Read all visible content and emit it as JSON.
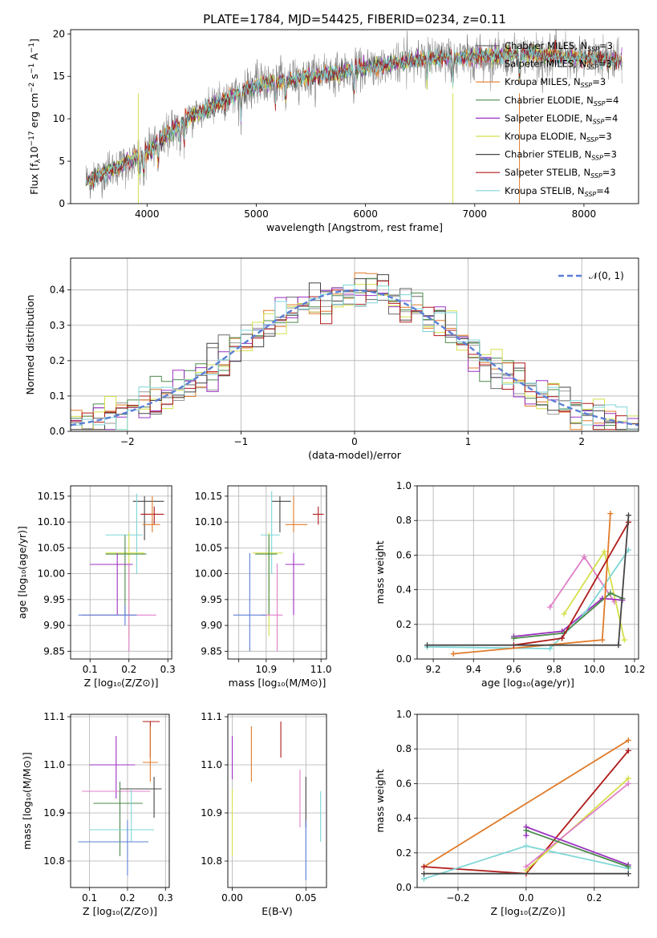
{
  "figure": {
    "title": "PLATE=1784, MJD=54425, FIBERID=0234, z=0.11"
  },
  "models": [
    {
      "name": "Chabrier MILES, N_SSP=3",
      "base": "Chabrier MILES, N",
      "sub": "SSP",
      "tail": "=3",
      "color": "#6a6a6a"
    },
    {
      "name": "Salpeter MILES, N_SSP=3",
      "base": "Salpeter MILES, N",
      "sub": "SSP",
      "tail": "=3",
      "color": "#999999"
    },
    {
      "name": "Kroupa MILES, N_SSP=3",
      "base": "Kroupa MILES, N",
      "sub": "SSP",
      "tail": "=3",
      "color": "#e07b2a"
    },
    {
      "name": "Chabrier ELODIE, N_SSP=4",
      "base": "Chabrier ELODIE, N",
      "sub": "SSP",
      "tail": "=4",
      "color": "#4c8a4c"
    },
    {
      "name": "Salpeter ELODIE, N_SSP=4",
      "base": "Salpeter ELODIE, N",
      "sub": "SSP",
      "tail": "=4",
      "color": "#9b30c0"
    },
    {
      "name": "Kroupa ELODIE, N_SSP=3",
      "base": "Kroupa ELODIE, N",
      "sub": "SSP",
      "tail": "=3",
      "color": "#d4e04a"
    },
    {
      "name": "Chabrier STELIB, N_SSP=3",
      "base": "Chabrier STELIB, N",
      "sub": "SSP",
      "tail": "=3",
      "color": "#444444"
    },
    {
      "name": "Salpeter STELIB, N_SSP=3",
      "base": "Salpeter STELIB, N",
      "sub": "SSP",
      "tail": "=3",
      "color": "#b01a1a"
    },
    {
      "name": "Kroupa STELIB, N_SSP=4",
      "base": "Kroupa STELIB, N",
      "sub": "SSP",
      "tail": "=4",
      "color": "#7fd6d6"
    }
  ],
  "extra_colors": {
    "blue": "#5b7fd6",
    "pink": "#e07fc8"
  },
  "chart_data": [
    {
      "id": "spectrum",
      "type": "line",
      "title": "PLATE=1784, MJD=54425, FIBERID=0234, z=0.11",
      "xlabel": "wavelength [Angstrom, rest frame]",
      "ylabel_main": "Flux [f",
      "ylabel_sub": "λ",
      "ylabel_rest": "10",
      "ylabel_exp1": "−17",
      "ylabel_unit": " erg cm",
      "ylabel_exp2": "−2",
      "ylabel_s": " s",
      "ylabel_exp3": "−1",
      "ylabel_A": " A",
      "ylabel_exp4": "−1",
      "ylabel_end": "]",
      "xlim": [
        3300,
        8500
      ],
      "ylim": [
        0,
        20.5
      ],
      "xticks": [
        4000,
        5000,
        6000,
        7000,
        8000
      ],
      "yticks": [
        0,
        5,
        10,
        15,
        20
      ],
      "xrange_data": [
        3440,
        8350
      ],
      "legend": "top-right"
    },
    {
      "id": "residuals",
      "type": "line",
      "xlabel": "(data-model)/error",
      "ylabel": "Normed distribution",
      "xlim": [
        -2.5,
        2.5
      ],
      "ylim": [
        0,
        0.49
      ],
      "xticks": [
        -2,
        -1,
        0,
        1,
        2
      ],
      "yticks": [
        0.0,
        0.1,
        0.2,
        0.3,
        0.4
      ],
      "legend_label": "𝒩(0, 1)",
      "legend": "top-right",
      "grid": true
    },
    {
      "id": "age-vs-z",
      "type": "scatter",
      "xlabel": "Z [log₁₀(Z/Z⊙)]",
      "ylabel": "age  [log₁₀(age/yr)]",
      "xlim": [
        0.05,
        0.31
      ],
      "ylim": [
        9.835,
        10.17
      ],
      "xticks": [
        0.1,
        0.2,
        0.3
      ],
      "yticks": [
        9.85,
        9.9,
        9.95,
        10.0,
        10.05,
        10.1,
        10.15
      ],
      "grid": true,
      "points": [
        {
          "c": "#444444",
          "x": 0.24,
          "xe": [
            0.21,
            0.29
          ],
          "y": 10.14,
          "ye": [
            10.065,
            10.15
          ]
        },
        {
          "c": "#b01a1a",
          "x": 0.265,
          "xe": [
            0.23,
            0.29
          ],
          "y": 10.115,
          "ye": [
            10.095,
            10.13
          ]
        },
        {
          "c": "#e07b2a",
          "x": 0.26,
          "xe": [
            0.235,
            0.28
          ],
          "y": 10.095,
          "ye": [
            10.08,
            10.15
          ]
        },
        {
          "c": "#7fd6d6",
          "x": 0.22,
          "xe": [
            0.14,
            0.235
          ],
          "y": 10.075,
          "ye": [
            10.0,
            10.155
          ]
        },
        {
          "c": "#d4e04a",
          "x": 0.2,
          "xe": [
            0.14,
            0.24
          ],
          "y": 10.04,
          "ye": [
            9.88,
            10.08
          ]
        },
        {
          "c": "#4c8a4c",
          "x": 0.19,
          "xe": [
            0.14,
            0.245
          ],
          "y": 10.038,
          "ye": [
            9.92,
            10.075
          ]
        },
        {
          "c": "#9b30c0",
          "x": 0.17,
          "xe": [
            0.1,
            0.21
          ],
          "y": 10.018,
          "ye": [
            9.92,
            10.04
          ]
        },
        {
          "c": "#e07fc8",
          "x": 0.2,
          "xe": [
            0.08,
            0.27
          ],
          "y": 9.92,
          "ye": [
            9.85,
            10.02
          ]
        },
        {
          "c": "#5b7fd6",
          "x": 0.19,
          "xe": [
            0.07,
            0.22
          ],
          "y": 9.92,
          "ye": [
            9.9,
            9.94
          ]
        }
      ]
    },
    {
      "id": "age-vs-mass",
      "type": "scatter",
      "xlabel": "mass [log₁₀(M/M⊙)]",
      "ylabel": "",
      "xlim": [
        10.76,
        11.12
      ],
      "ylim": [
        9.835,
        10.17
      ],
      "xticks": [
        10.8,
        10.9,
        11.0,
        11.1
      ],
      "xticklabels": [
        "",
        "10.9",
        "",
        "11.0",
        ""
      ],
      "yticks": [
        9.85,
        9.9,
        9.95,
        10.0,
        10.05,
        10.1,
        10.15
      ],
      "grid": true,
      "points": [
        {
          "c": "#444444",
          "x": 10.95,
          "xe": [
            10.92,
            10.99
          ],
          "y": 10.14,
          "ye": [
            10.08,
            10.15
          ]
        },
        {
          "c": "#b01a1a",
          "x": 11.09,
          "xe": [
            11.07,
            11.11
          ],
          "y": 10.115,
          "ye": [
            10.095,
            10.13
          ]
        },
        {
          "c": "#e07b2a",
          "x": 11.0,
          "xe": [
            10.97,
            11.05
          ],
          "y": 10.095,
          "ye": [
            10.08,
            10.15
          ]
        },
        {
          "c": "#7fd6d6",
          "x": 10.92,
          "xe": [
            10.88,
            10.95
          ],
          "y": 10.075,
          "ye": [
            10.0,
            10.16
          ]
        },
        {
          "c": "#d4e04a",
          "x": 10.91,
          "xe": [
            10.85,
            10.96
          ],
          "y": 10.04,
          "ye": [
            9.88,
            10.08
          ]
        },
        {
          "c": "#4c8a4c",
          "x": 10.91,
          "xe": [
            10.86,
            10.94
          ],
          "y": 10.038,
          "ye": [
            9.92,
            10.075
          ]
        },
        {
          "c": "#9b30c0",
          "x": 11.0,
          "xe": [
            10.97,
            11.04
          ],
          "y": 10.018,
          "ye": [
            9.92,
            10.04
          ]
        },
        {
          "c": "#e07fc8",
          "x": 10.94,
          "xe": [
            10.88,
            10.96
          ],
          "y": 9.92,
          "ye": [
            9.85,
            10.02
          ]
        },
        {
          "c": "#5b7fd6",
          "x": 10.84,
          "xe": [
            10.78,
            10.9
          ],
          "y": 9.92,
          "ye": [
            9.85,
            10.04
          ]
        }
      ]
    },
    {
      "id": "weight-vs-age",
      "type": "line",
      "xlabel": "age  [log₁₀(age/yr)]",
      "ylabel": "mass weight",
      "xlim": [
        9.12,
        10.22
      ],
      "ylim": [
        0,
        1.0
      ],
      "xticks": [
        9.2,
        9.4,
        9.6,
        9.8,
        10.0,
        10.2
      ],
      "yticks": [
        0.0,
        0.2,
        0.4,
        0.6,
        0.8,
        1.0
      ],
      "grid": true,
      "series": [
        {
          "c": "#e07fc8",
          "x": [
            9.78,
            9.95,
            10.1
          ],
          "y": [
            0.3,
            0.59,
            0.33
          ]
        },
        {
          "c": "#d4e04a",
          "x": [
            9.85,
            10.05,
            10.15
          ],
          "y": [
            0.26,
            0.62,
            0.11
          ]
        },
        {
          "c": "#9b30c0",
          "x": [
            9.6,
            9.84,
            10.04,
            10.14
          ],
          "y": [
            0.13,
            0.16,
            0.35,
            0.34
          ]
        },
        {
          "c": "#7fd6d6",
          "x": [
            9.17,
            9.78,
            9.95,
            10.17
          ],
          "y": [
            0.07,
            0.06,
            0.26,
            0.63
          ]
        },
        {
          "c": "#4c8a4c",
          "x": [
            9.6,
            9.85,
            10.08,
            10.14
          ],
          "y": [
            0.12,
            0.15,
            0.38,
            0.35
          ]
        },
        {
          "c": "#e07b2a",
          "x": [
            9.3,
            10.04,
            10.08
          ],
          "y": [
            0.03,
            0.11,
            0.84
          ]
        },
        {
          "c": "#b01a1a",
          "x": [
            9.6,
            9.84,
            10.17
          ],
          "y": [
            0.08,
            0.12,
            0.79
          ]
        },
        {
          "c": "#444444",
          "x": [
            9.17,
            10.12,
            10.17
          ],
          "y": [
            0.08,
            0.08,
            0.83
          ]
        }
      ]
    },
    {
      "id": "mass-vs-z",
      "type": "scatter",
      "xlabel": "Z [log₁₀(Z/Z⊙)]",
      "ylabel": "mass [log₁₀(M/M⊙)]",
      "xlim": [
        0.05,
        0.31
      ],
      "ylim": [
        10.745,
        11.105
      ],
      "xticks": [
        0.1,
        0.2,
        0.3
      ],
      "yticks": [
        10.8,
        10.9,
        11.0,
        11.1
      ],
      "grid": true,
      "points": [
        {
          "c": "#b01a1a",
          "x": 0.26,
          "xe": [
            0.24,
            0.285
          ],
          "y": 11.09,
          "ye": [
            11.015,
            11.09
          ]
        },
        {
          "c": "#e07b2a",
          "x": 0.26,
          "xe": [
            0.24,
            0.28
          ],
          "y": 11.005,
          "ye": [
            10.965,
            11.08
          ]
        },
        {
          "c": "#9b30c0",
          "x": 0.17,
          "xe": [
            0.1,
            0.22
          ],
          "y": 11.0,
          "ye": [
            10.93,
            11.06
          ]
        },
        {
          "c": "#444444",
          "x": 0.27,
          "xe": [
            0.18,
            0.29
          ],
          "y": 10.95,
          "ye": [
            10.89,
            10.975
          ]
        },
        {
          "c": "#e07fc8",
          "x": 0.18,
          "xe": [
            0.08,
            0.26
          ],
          "y": 10.945,
          "ye": [
            10.84,
            10.95
          ]
        },
        {
          "c": "#4c8a4c",
          "x": 0.18,
          "xe": [
            0.11,
            0.24
          ],
          "y": 10.92,
          "ye": [
            10.81,
            10.965
          ]
        },
        {
          "c": "#7fd6d6",
          "x": 0.21,
          "xe": [
            0.1,
            0.27
          ],
          "y": 10.865,
          "ye": [
            10.84,
            10.95
          ]
        },
        {
          "c": "#5b7fd6",
          "x": 0.2,
          "xe": [
            0.07,
            0.255
          ],
          "y": 10.84,
          "ye": [
            10.77,
            10.885
          ]
        }
      ]
    },
    {
      "id": "mass-vs-ebv",
      "type": "scatter",
      "xlabel": "E(B-V)",
      "ylabel": "",
      "xlim": [
        -0.003,
        0.064
      ],
      "ylim": [
        10.745,
        11.105
      ],
      "xticks": [
        0.0,
        0.05
      ],
      "yticks": [
        10.8,
        10.9,
        11.0,
        11.1
      ],
      "grid": true,
      "points": [
        {
          "c": "#b01a1a",
          "x": 0.033,
          "xe": [
            0.033,
            0.033
          ],
          "y": 11.05,
          "ye": [
            11.015,
            11.09
          ]
        },
        {
          "c": "#e07b2a",
          "x": 0.013,
          "xe": [
            0.013,
            0.013
          ],
          "y": 11.02,
          "ye": [
            10.965,
            11.08
          ]
        },
        {
          "c": "#9b30c0",
          "x": 0.0,
          "xe": [
            0.0,
            0.0
          ],
          "y": 11.0,
          "ye": [
            10.97,
            11.06
          ]
        },
        {
          "c": "#d4e04a",
          "x": 0.0,
          "xe": [
            0.0,
            0.0
          ],
          "y": 10.88,
          "ye": [
            10.81,
            10.95
          ]
        },
        {
          "c": "#e07fc8",
          "x": 0.046,
          "xe": [
            0.046,
            0.046
          ],
          "y": 10.93,
          "ye": [
            10.87,
            10.99
          ]
        },
        {
          "c": "#444444",
          "x": 0.05,
          "xe": [
            0.05,
            0.05
          ],
          "y": 10.92,
          "ye": [
            10.87,
            10.975
          ]
        },
        {
          "c": "#5b7fd6",
          "x": 0.05,
          "xe": [
            0.05,
            0.05
          ],
          "y": 10.82,
          "ye": [
            10.76,
            10.885
          ]
        },
        {
          "c": "#7fd6d6",
          "x": 0.06,
          "xe": [
            0.06,
            0.06
          ],
          "y": 10.89,
          "ye": [
            10.84,
            10.945
          ]
        }
      ]
    },
    {
      "id": "weight-vs-z",
      "type": "line",
      "xlabel": "Z [log₁₀(Z/Z⊙)]",
      "ylabel": "mass weight",
      "xlim": [
        -0.32,
        0.33
      ],
      "ylim": [
        0,
        1.0
      ],
      "xticks": [
        -0.2,
        0.0,
        0.2
      ],
      "yticks": [
        0.0,
        0.2,
        0.4,
        0.6,
        0.8,
        1.0
      ],
      "grid": true,
      "series": [
        {
          "c": "#e07b2a",
          "x": [
            -0.3,
            0.3
          ],
          "y": [
            0.12,
            0.85
          ]
        },
        {
          "c": "#b01a1a",
          "x": [
            -0.3,
            0.0,
            0.3
          ],
          "y": [
            0.12,
            0.08,
            0.79
          ]
        },
        {
          "c": "#7fd6d6",
          "x": [
            -0.3,
            0.0,
            0.3
          ],
          "y": [
            0.05,
            0.24,
            0.11
          ]
        },
        {
          "c": "#d4e04a",
          "x": [
            0.0,
            0.3
          ],
          "y": [
            0.1,
            0.63
          ]
        },
        {
          "c": "#e07fc8",
          "x": [
            0.0,
            0.3
          ],
          "y": [
            0.12,
            0.6
          ]
        },
        {
          "c": "#9b30c0",
          "x": [
            0.0,
            0.0,
            0.3
          ],
          "y": [
            0.3,
            0.35,
            0.13
          ]
        },
        {
          "c": "#4c8a4c",
          "x": [
            0.0,
            0.3
          ],
          "y": [
            0.33,
            0.12
          ]
        },
        {
          "c": "#444444",
          "x": [
            -0.3,
            0.3
          ],
          "y": [
            0.08,
            0.08
          ]
        }
      ]
    }
  ]
}
